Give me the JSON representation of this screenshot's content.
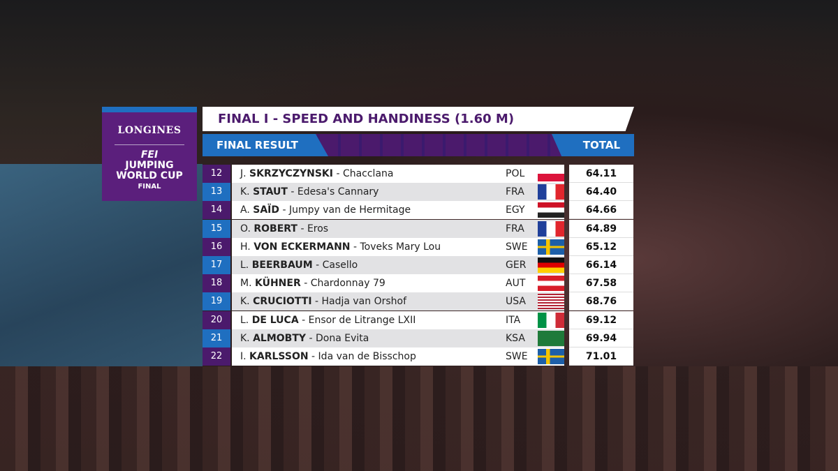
{
  "logo": {
    "brand": "LONGINES",
    "org": "FEI",
    "event": "JUMPING WORLD CUP",
    "sub": "FINAL"
  },
  "header": {
    "title": "FINAL I - SPEED AND HANDINESS (1.60 M)",
    "left": "FINAL RESULT",
    "right": "TOTAL"
  },
  "table": {
    "rows": [
      [
        "12",
        "J.",
        "SKRZYCZYNSKI",
        "- Chacclana",
        "POL",
        "64.11"
      ],
      [
        "13",
        "K.",
        "STAUT",
        "- Edesa's Cannary",
        "FRA",
        "64.40"
      ],
      [
        "14",
        "A.",
        "SAÏD",
        "- Jumpy van de Hermitage",
        "EGY",
        "64.66"
      ],
      [
        "15",
        "O.",
        "ROBERT",
        "- Eros",
        "FRA",
        "64.89"
      ],
      [
        "16",
        "H.",
        "VON ECKERMANN",
        "- Toveks Mary Lou",
        "SWE",
        "65.12"
      ],
      [
        "17",
        "L.",
        "BEERBAUM",
        "- Casello",
        "GER",
        "66.14"
      ],
      [
        "18",
        "M.",
        "KÜHNER",
        "- Chardonnay 79",
        "AUT",
        "67.58"
      ],
      [
        "19",
        "K.",
        "CRUCIOTTI",
        "- Hadja van Orshof",
        "USA",
        "68.76"
      ],
      [
        "20",
        "L.",
        "DE LUCA",
        "- Ensor de Litrange LXII",
        "ITA",
        "69.12"
      ],
      [
        "21",
        "K.",
        "ALMOBTY",
        "- Dona Evita",
        "KSA",
        "69.94"
      ],
      [
        "22",
        "I.",
        "KARLSSON",
        "- Ida van de Bisschop",
        "SWE",
        "71.01"
      ]
    ]
  }
}
